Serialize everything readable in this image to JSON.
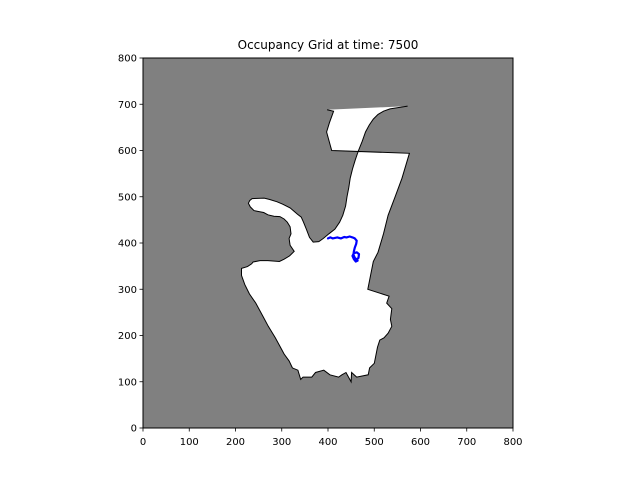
{
  "chart_data": {
    "type": "heatmap",
    "title": "Occupancy Grid at time: 7500",
    "xlabel": "",
    "ylabel": "",
    "xlim": [
      0,
      800
    ],
    "ylim": [
      0,
      800
    ],
    "x_ticks": [
      0,
      100,
      200,
      300,
      400,
      500,
      600,
      700,
      800
    ],
    "y_ticks": [
      0,
      100,
      200,
      300,
      400,
      500,
      600,
      700,
      800
    ],
    "colors": {
      "unknown": "#808080",
      "free": "#ffffff",
      "occupied": "#000000",
      "path": "#0000ff"
    },
    "free_space_outline": [
      [
        398,
        688
      ],
      [
        412,
        685
      ],
      [
        403,
        660
      ],
      [
        397,
        640
      ],
      [
        408,
        600
      ],
      [
        576,
        594
      ],
      [
        560,
        540
      ],
      [
        545,
        500
      ],
      [
        530,
        460
      ],
      [
        520,
        420
      ],
      [
        508,
        380
      ],
      [
        498,
        360
      ],
      [
        486,
        300
      ],
      [
        532,
        285
      ],
      [
        527,
        270
      ],
      [
        538,
        258
      ],
      [
        535,
        235
      ],
      [
        538,
        220
      ],
      [
        530,
        205
      ],
      [
        521,
        195
      ],
      [
        512,
        190
      ],
      [
        507,
        175
      ],
      [
        500,
        140
      ],
      [
        490,
        130
      ],
      [
        487,
        115
      ],
      [
        462,
        110
      ],
      [
        451,
        120
      ],
      [
        450,
        100
      ],
      [
        439,
        120
      ],
      [
        430,
        115
      ],
      [
        423,
        110
      ],
      [
        404,
        115
      ],
      [
        391,
        125
      ],
      [
        373,
        120
      ],
      [
        365,
        110
      ],
      [
        346,
        110
      ],
      [
        341,
        105
      ],
      [
        335,
        125
      ],
      [
        323,
        130
      ],
      [
        316,
        145
      ],
      [
        305,
        160
      ],
      [
        297,
        175
      ],
      [
        286,
        195
      ],
      [
        271,
        220
      ],
      [
        260,
        240
      ],
      [
        244,
        270
      ],
      [
        230,
        290
      ],
      [
        220,
        310
      ],
      [
        213,
        330
      ],
      [
        213,
        345
      ],
      [
        226,
        349
      ],
      [
        235,
        355
      ],
      [
        238,
        359
      ],
      [
        253,
        362
      ],
      [
        270,
        362
      ],
      [
        295,
        360
      ],
      [
        305,
        365
      ],
      [
        317,
        372
      ],
      [
        327,
        382
      ],
      [
        318,
        395
      ],
      [
        316,
        410
      ],
      [
        320,
        420
      ],
      [
        318,
        435
      ],
      [
        312,
        445
      ],
      [
        305,
        452
      ],
      [
        296,
        457
      ],
      [
        283,
        458
      ],
      [
        270,
        461
      ],
      [
        261,
        466
      ],
      [
        251,
        468
      ],
      [
        240,
        470
      ],
      [
        232,
        478
      ],
      [
        228,
        486
      ],
      [
        231,
        492
      ],
      [
        236,
        496
      ],
      [
        262,
        497
      ],
      [
        274,
        494
      ],
      [
        290,
        489
      ],
      [
        302,
        484
      ],
      [
        318,
        476
      ],
      [
        325,
        470
      ],
      [
        334,
        462
      ],
      [
        342,
        456
      ],
      [
        347,
        445
      ],
      [
        353,
        430
      ],
      [
        360,
        412
      ],
      [
        368,
        402
      ],
      [
        380,
        403
      ],
      [
        390,
        410
      ],
      [
        402,
        420
      ],
      [
        415,
        430
      ],
      [
        425,
        445
      ],
      [
        432,
        460
      ],
      [
        438,
        480
      ],
      [
        441,
        500
      ],
      [
        445,
        520
      ],
      [
        448,
        540
      ],
      [
        453,
        560
      ],
      [
        459,
        580
      ],
      [
        466,
        600
      ],
      [
        474,
        620
      ],
      [
        481,
        640
      ],
      [
        489,
        655
      ],
      [
        498,
        668
      ],
      [
        508,
        678
      ],
      [
        520,
        685
      ],
      [
        534,
        690
      ],
      [
        548,
        692
      ],
      [
        560,
        694
      ],
      [
        572,
        696
      ]
    ],
    "robot_path": [
      [
        400,
        410
      ],
      [
        405,
        412
      ],
      [
        410,
        410
      ],
      [
        420,
        412
      ],
      [
        428,
        410
      ],
      [
        435,
        413
      ],
      [
        440,
        412
      ],
      [
        447,
        414
      ],
      [
        453,
        412
      ],
      [
        458,
        410
      ],
      [
        462,
        405
      ],
      [
        461,
        398
      ],
      [
        458,
        390
      ],
      [
        456,
        382
      ],
      [
        455,
        375
      ],
      [
        458,
        368
      ],
      [
        462,
        364
      ],
      [
        466,
        368
      ],
      [
        467,
        376
      ],
      [
        462,
        380
      ],
      [
        456,
        378
      ],
      [
        453,
        372
      ],
      [
        456,
        365
      ],
      [
        460,
        360
      ],
      [
        464,
        362
      ]
    ]
  }
}
